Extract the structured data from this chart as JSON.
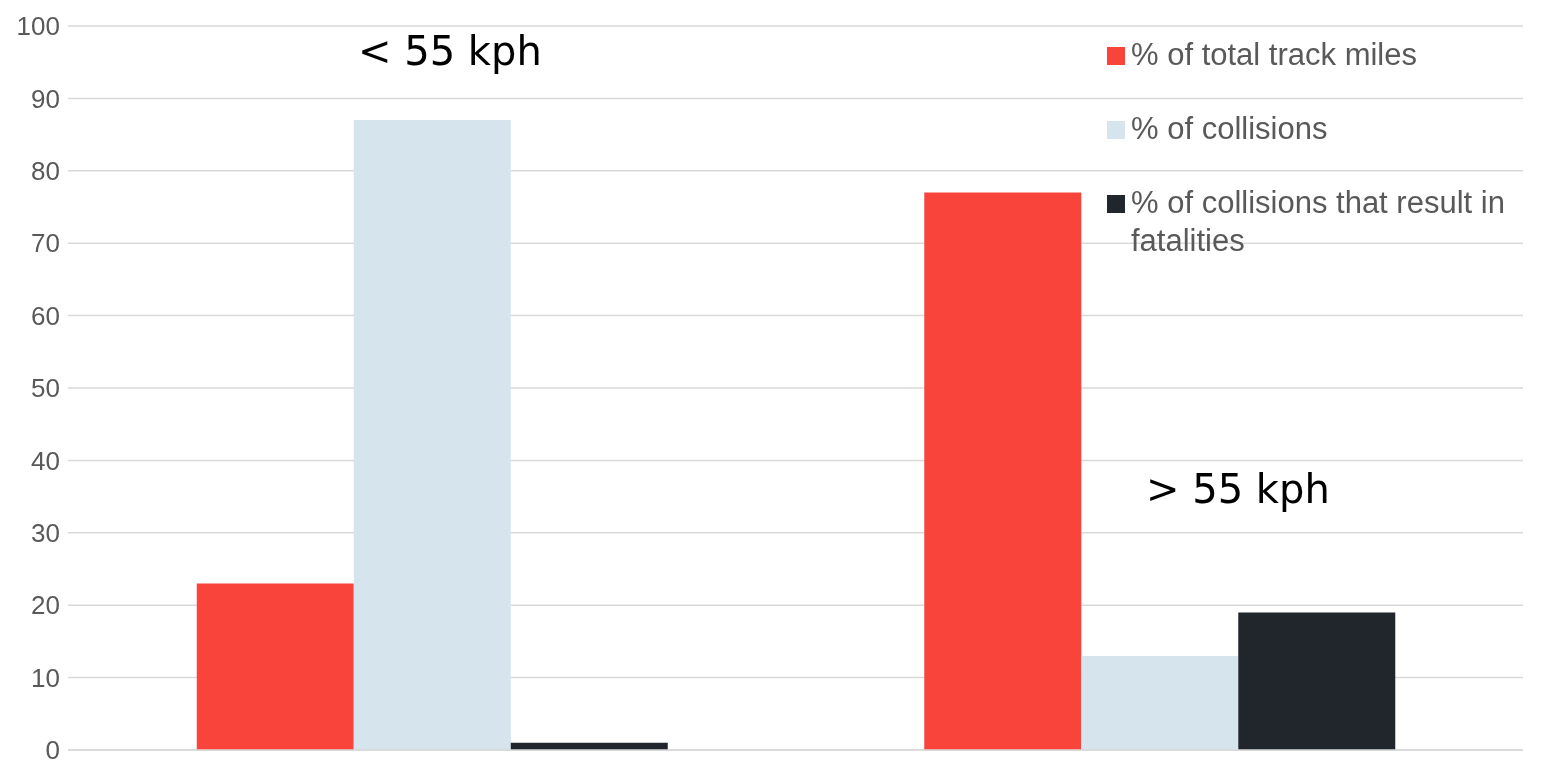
{
  "chart_data": {
    "type": "bar",
    "categories": [
      null,
      null
    ],
    "series": [
      {
        "name": "% of total track miles",
        "color": "#f9443b",
        "values": [
          23,
          77
        ]
      },
      {
        "name": "% of collisions",
        "color": "#d6e4ee",
        "values": [
          87,
          13
        ]
      },
      {
        "name": "% of collisions that result in fatalities",
        "color": "#21262d",
        "values": [
          1,
          19
        ]
      }
    ],
    "ylim": [
      0,
      100
    ],
    "yticks": [
      0,
      10,
      20,
      30,
      40,
      50,
      60,
      70,
      80,
      90,
      100
    ],
    "grid": "y",
    "legend": "top right",
    "annotations": [
      "< 55 kph",
      "> 55 kph"
    ]
  }
}
